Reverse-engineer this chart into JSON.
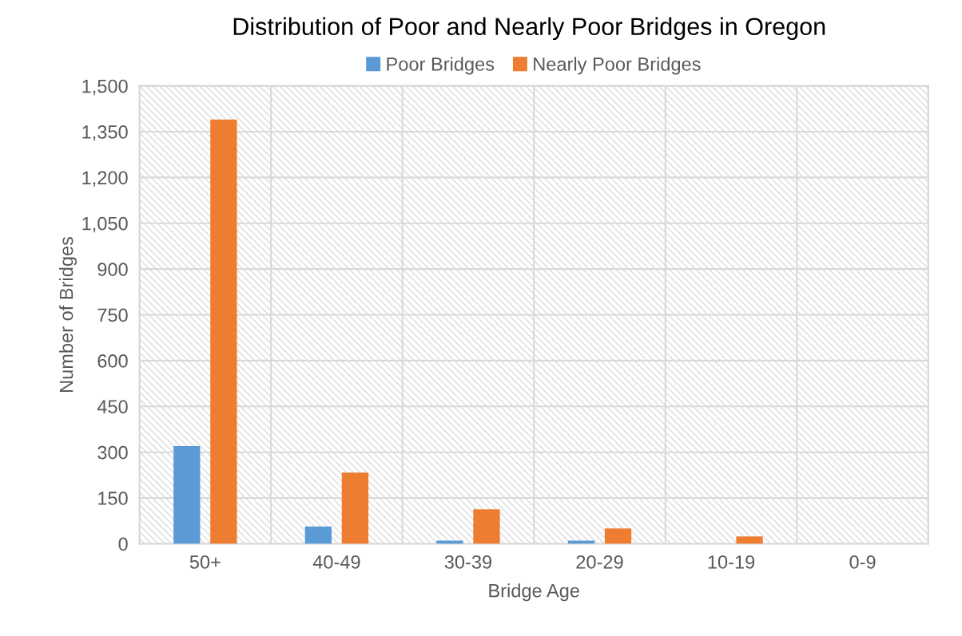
{
  "chart_data": {
    "type": "bar",
    "title": "Distribution of Poor and Nearly Poor Bridges in Oregon",
    "xlabel": "Bridge Age",
    "ylabel": "Number of Bridges",
    "categories": [
      "50+",
      "40-49",
      "30-39",
      "20-29",
      "10-19",
      "0-9"
    ],
    "series": [
      {
        "name": "Poor Bridges",
        "color": "#5b9bd5",
        "values": [
          320,
          57,
          10,
          10,
          null,
          null
        ]
      },
      {
        "name": "Nearly Poor Bridges",
        "color": "#ed7d31",
        "values": [
          1390,
          233,
          113,
          50,
          24,
          null
        ]
      }
    ],
    "ylim": [
      0,
      1500
    ],
    "yticks": [
      0,
      {
        "value": 150,
        "label": "150"
      },
      {
        "value": 300,
        "label": "300"
      },
      {
        "value": 450,
        "label": "450"
      },
      {
        "value": 600,
        "label": "600"
      },
      {
        "value": 750,
        "label": "750"
      },
      {
        "value": 900,
        "label": "900"
      },
      {
        "value": 1050,
        "label": "1,050"
      },
      {
        "value": 1200,
        "label": "1,200"
      },
      {
        "value": 1350,
        "label": "1,350"
      },
      {
        "value": 1500,
        "label": "1,500"
      }
    ],
    "grid": true,
    "legend": "top"
  }
}
